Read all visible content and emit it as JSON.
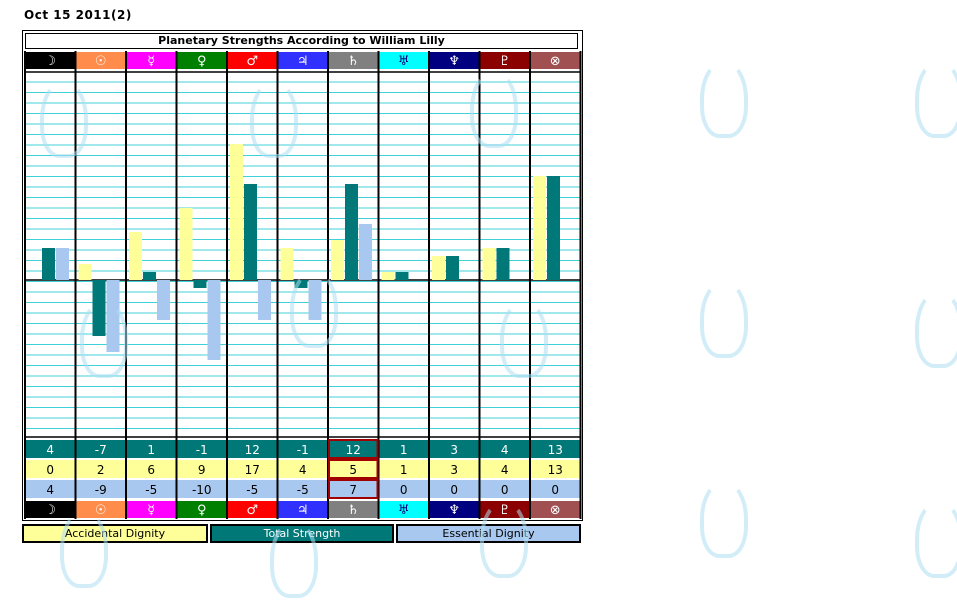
{
  "date_label": "Oct 15 2011(2)",
  "chart_data": {
    "type": "bar",
    "title": "Planetary Strengths According to William Lilly",
    "categories": [
      "Moon",
      "Sun",
      "Mercury",
      "Venus",
      "Mars",
      "Jupiter",
      "Saturn",
      "Uranus",
      "Neptune",
      "Pluto",
      "Part of Fortune"
    ],
    "glyphs": [
      "☽",
      "☉",
      "☿",
      "♀",
      "♂",
      "♃",
      "♄",
      "♅",
      "♆",
      "♇",
      "⊗"
    ],
    "cell_colors": [
      "#000000",
      "#ff8c4a",
      "#ff00ff",
      "#008000",
      "#ff0000",
      "#3030ff",
      "#808080",
      "#00ffff",
      "#000080",
      "#8b0000",
      "#a05050"
    ],
    "series": [
      {
        "name": "Accidental Dignity",
        "color": "#ffff99",
        "values": [
          0,
          2,
          6,
          9,
          17,
          4,
          5,
          1,
          3,
          4,
          13
        ]
      },
      {
        "name": "Total Strength",
        "color": "#007878",
        "values": [
          4,
          -7,
          1,
          -1,
          12,
          -1,
          12,
          1,
          3,
          4,
          13
        ]
      },
      {
        "name": "Essential Dignity",
        "color": "#a8c8f0",
        "values": [
          4,
          -9,
          -5,
          -10,
          -5,
          -5,
          7,
          0,
          0,
          0,
          0
        ]
      }
    ],
    "ylim": [
      -20,
      26
    ],
    "grid": true
  }
}
